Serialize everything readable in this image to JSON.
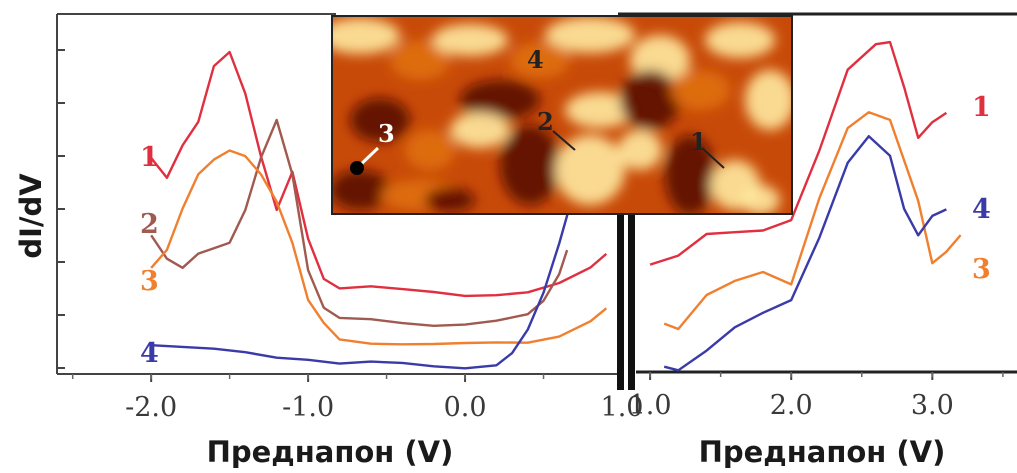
{
  "chart_data": [
    {
      "panel": "left",
      "type": "line",
      "xlabel": "Преднапон (V)",
      "ylabel": "dI/dV",
      "xlim": [
        -2.6,
        1.0
      ],
      "ylim": [
        0,
        10
      ],
      "x_ticks": [
        "-2.0",
        "-1.0",
        "0.0",
        "1.0"
      ],
      "x_tick_values": [
        -2.0,
        -1.0,
        0.0,
        1.0
      ],
      "series": [
        {
          "name": "1",
          "color": "#e03040",
          "x": [
            -2.0,
            -1.9,
            -1.8,
            -1.7,
            -1.6,
            -1.5,
            -1.4,
            -1.3,
            -1.2,
            -1.1,
            -1.0,
            -0.9,
            -0.8,
            -0.6,
            -0.4,
            -0.2,
            0.0,
            0.2,
            0.4,
            0.6,
            0.8,
            0.9
          ],
          "y": [
            6.0,
            5.4,
            6.3,
            7.0,
            8.6,
            9.0,
            7.8,
            6.0,
            4.5,
            5.6,
            3.8,
            2.7,
            2.4,
            2.4,
            2.3,
            2.25,
            2.2,
            2.25,
            2.3,
            2.5,
            2.9,
            3.3
          ]
        },
        {
          "name": "2",
          "color": "#a05a50",
          "x": [
            -2.0,
            -1.9,
            -1.8,
            -1.7,
            -1.6,
            -1.5,
            -1.4,
            -1.3,
            -1.2,
            -1.1,
            -1.0,
            -0.9,
            -0.8,
            -0.6,
            -0.4,
            -0.2,
            0.0,
            0.2,
            0.4,
            0.5,
            0.6,
            0.65
          ],
          "y": [
            3.8,
            3.2,
            3.0,
            3.4,
            3.5,
            3.6,
            4.5,
            6.0,
            7.1,
            5.6,
            2.9,
            1.8,
            1.5,
            1.5,
            1.45,
            1.4,
            1.4,
            1.45,
            1.6,
            2.0,
            2.8,
            3.5
          ]
        },
        {
          "name": "3",
          "color": "#f08030",
          "x": [
            -2.0,
            -1.9,
            -1.8,
            -1.7,
            -1.6,
            -1.5,
            -1.4,
            -1.3,
            -1.2,
            -1.1,
            -1.0,
            -0.9,
            -0.8,
            -0.6,
            -0.4,
            -0.2,
            0.0,
            0.2,
            0.4,
            0.6,
            0.8,
            0.9
          ],
          "y": [
            3.0,
            3.5,
            4.6,
            5.5,
            5.9,
            6.2,
            6.1,
            5.6,
            4.8,
            3.6,
            2.0,
            1.4,
            1.0,
            0.9,
            0.85,
            0.8,
            0.8,
            0.85,
            0.9,
            1.1,
            1.5,
            1.8
          ]
        },
        {
          "name": "4",
          "color": "#3a3aa8",
          "x": [
            -2.0,
            -1.8,
            -1.6,
            -1.4,
            -1.2,
            -1.0,
            -0.8,
            -0.6,
            -0.4,
            -0.2,
            0.0,
            0.2,
            0.3,
            0.4,
            0.5,
            0.6,
            0.7,
            0.8,
            0.9
          ],
          "y": [
            0.8,
            0.7,
            0.65,
            0.6,
            0.5,
            0.45,
            0.3,
            0.3,
            0.25,
            0.2,
            0.2,
            0.3,
            0.6,
            1.2,
            2.2,
            3.6,
            5.2,
            7.2,
            9.5
          ]
        }
      ]
    },
    {
      "panel": "right",
      "type": "line",
      "xlabel": "Преднапон (V)",
      "xlim": [
        0.9,
        3.6
      ],
      "ylim": [
        0,
        10
      ],
      "x_ticks": [
        "1.0",
        "2.0",
        "3.0"
      ],
      "x_tick_values": [
        1.0,
        2.0,
        3.0
      ],
      "series": [
        {
          "name": "1",
          "color": "#e03040",
          "x": [
            1.0,
            1.2,
            1.4,
            1.6,
            1.8,
            2.0,
            2.2,
            2.4,
            2.6,
            2.7,
            2.8,
            2.9,
            3.0,
            3.1
          ],
          "y": [
            3.0,
            3.2,
            3.8,
            3.9,
            4.0,
            4.3,
            6.2,
            8.4,
            9.1,
            9.2,
            8.0,
            6.6,
            7.0,
            7.2
          ]
        },
        {
          "name": "3",
          "color": "#f08030",
          "x": [
            1.1,
            1.2,
            1.4,
            1.6,
            1.8,
            2.0,
            2.2,
            2.4,
            2.55,
            2.7,
            2.9,
            3.0,
            3.1,
            3.2
          ],
          "y": [
            1.3,
            1.2,
            2.2,
            2.6,
            2.8,
            2.4,
            4.8,
            6.8,
            7.3,
            7.1,
            4.8,
            3.0,
            3.3,
            3.8
          ]
        },
        {
          "name": "4",
          "color": "#3a3aa8",
          "x": [
            1.1,
            1.2,
            1.4,
            1.6,
            1.8,
            2.0,
            2.2,
            2.4,
            2.55,
            2.7,
            2.8,
            2.9,
            3.0,
            3.1
          ],
          "y": [
            0.2,
            0.1,
            0.6,
            1.2,
            1.6,
            2.0,
            3.8,
            5.9,
            6.6,
            6.0,
            4.5,
            3.8,
            4.4,
            4.6
          ]
        }
      ]
    }
  ],
  "labels": {
    "left": [
      {
        "text": "1",
        "color": "#e03040"
      },
      {
        "text": "2",
        "color": "#a05a50"
      },
      {
        "text": "3",
        "color": "#f08030"
      },
      {
        "text": "4",
        "color": "#3a3aa8"
      }
    ],
    "right": [
      {
        "text": "1",
        "color": "#e03040"
      },
      {
        "text": "4",
        "color": "#3a3aa8"
      },
      {
        "text": "3",
        "color": "#f08030"
      }
    ]
  },
  "inset": {
    "labels": [
      "4",
      "2",
      "3",
      "1"
    ],
    "colors": {
      "bright": "#ffe9a0",
      "mid": "#e07010",
      "dark": "#5a0800"
    }
  },
  "y_axis_title": "dI/dV",
  "x_axis_title_left": "Преднапон (V)",
  "x_axis_title_right": "Преднапон (V)"
}
